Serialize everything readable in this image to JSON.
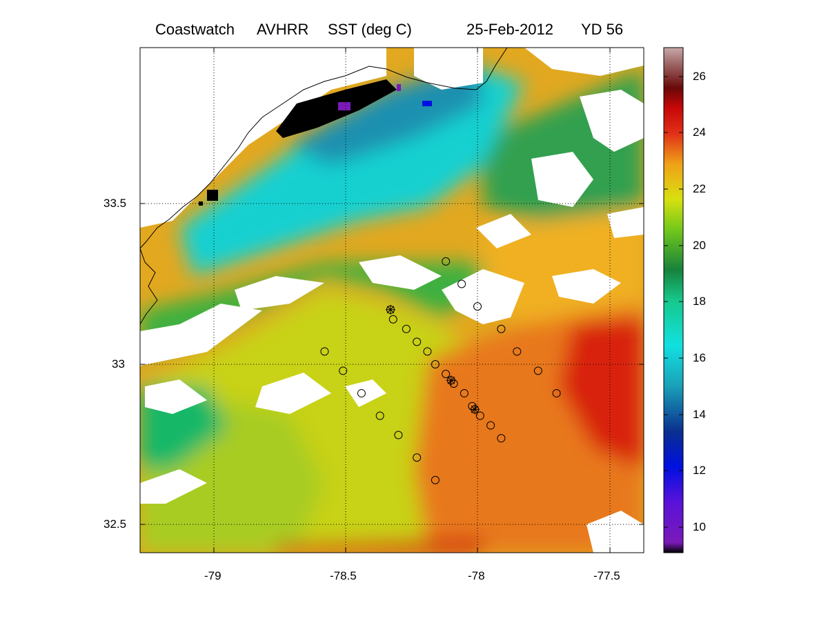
{
  "title": {
    "product": "Coastwatch",
    "sensor": "AVHRR",
    "variable": "SST  (deg C)",
    "date": "25-Feb-2012",
    "yearday": "YD 56"
  },
  "map": {
    "x_axis": {
      "ticks": [
        "-79",
        "-78.5",
        "-78",
        "-77.5"
      ],
      "tick_values": [
        -79,
        -78.5,
        -78,
        -77.5
      ],
      "range": [
        -79.28,
        -77.38
      ]
    },
    "y_axis": {
      "ticks": [
        "33.5",
        "33",
        "32.5"
      ],
      "tick_values": [
        33.5,
        33.0,
        32.5
      ],
      "range": [
        32.42,
        33.98
      ]
    },
    "grid": "dotted",
    "coastline_color": "#000000",
    "missing_data_color": "#ffffff"
  },
  "colorbar": {
    "ticks": [
      "10",
      "12",
      "14",
      "16",
      "18",
      "20",
      "22",
      "24",
      "26"
    ],
    "tick_values": [
      10,
      12,
      14,
      16,
      18,
      20,
      22,
      24,
      26
    ],
    "range": [
      9,
      27
    ],
    "colormap": "jet-like"
  },
  "stations": {
    "circles": [
      [
        -78.12,
        33.32
      ],
      [
        -78.06,
        33.25
      ],
      [
        -78.0,
        33.18
      ],
      [
        -77.91,
        33.11
      ],
      [
        -77.85,
        33.04
      ],
      [
        -77.77,
        32.98
      ],
      [
        -77.7,
        32.91
      ],
      [
        -78.32,
        33.14
      ],
      [
        -78.27,
        33.11
      ],
      [
        -78.23,
        33.07
      ],
      [
        -78.19,
        33.04
      ],
      [
        -78.16,
        33.0
      ],
      [
        -78.12,
        32.97
      ],
      [
        -78.09,
        32.94
      ],
      [
        -78.05,
        32.91
      ],
      [
        -78.02,
        32.87
      ],
      [
        -77.99,
        32.84
      ],
      [
        -77.95,
        32.81
      ],
      [
        -77.91,
        32.77
      ],
      [
        -78.58,
        33.04
      ],
      [
        -78.51,
        32.98
      ],
      [
        -78.44,
        32.91
      ],
      [
        -78.37,
        32.84
      ],
      [
        -78.3,
        32.78
      ],
      [
        -78.23,
        32.71
      ],
      [
        -78.16,
        32.64
      ]
    ],
    "starred": [
      [
        -78.33,
        33.17
      ],
      [
        -78.1,
        32.95
      ],
      [
        -78.01,
        32.86
      ]
    ]
  }
}
